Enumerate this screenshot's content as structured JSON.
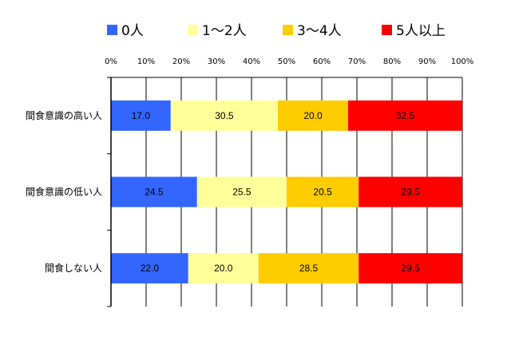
{
  "chart_data": {
    "type": "bar",
    "orientation": "horizontal",
    "stacked": true,
    "percent": true,
    "title": "",
    "xlabel": "",
    "ylabel": "",
    "xlim": [
      0,
      100
    ],
    "x_ticks": [
      "0%",
      "10%",
      "20%",
      "30%",
      "40%",
      "50%",
      "60%",
      "70%",
      "80%",
      "90%",
      "100%"
    ],
    "categories": [
      "間食意識の高い人",
      "間食意識の低い人",
      "間食しない人"
    ],
    "series": [
      {
        "name": "0人",
        "color": "#3366FF",
        "values": [
          17.0,
          24.5,
          22.0
        ],
        "labels": [
          "17.0",
          "24.5",
          "22.0"
        ]
      },
      {
        "name": "1～2人",
        "color": "#FFFF99",
        "values": [
          30.5,
          25.5,
          20.0
        ],
        "labels": [
          "30.5",
          "25.5",
          "20.0"
        ]
      },
      {
        "name": "3～4人",
        "color": "#FFCC00",
        "values": [
          20.0,
          20.5,
          28.5
        ],
        "labels": [
          "20.0",
          "20.5",
          "28.5"
        ]
      },
      {
        "name": "5人以上",
        "color": "#FF0000",
        "values": [
          32.5,
          29.5,
          29.5
        ],
        "labels": [
          "32.5",
          "29.5",
          "29.5"
        ]
      }
    ],
    "grid": true,
    "legend_position": "top"
  }
}
